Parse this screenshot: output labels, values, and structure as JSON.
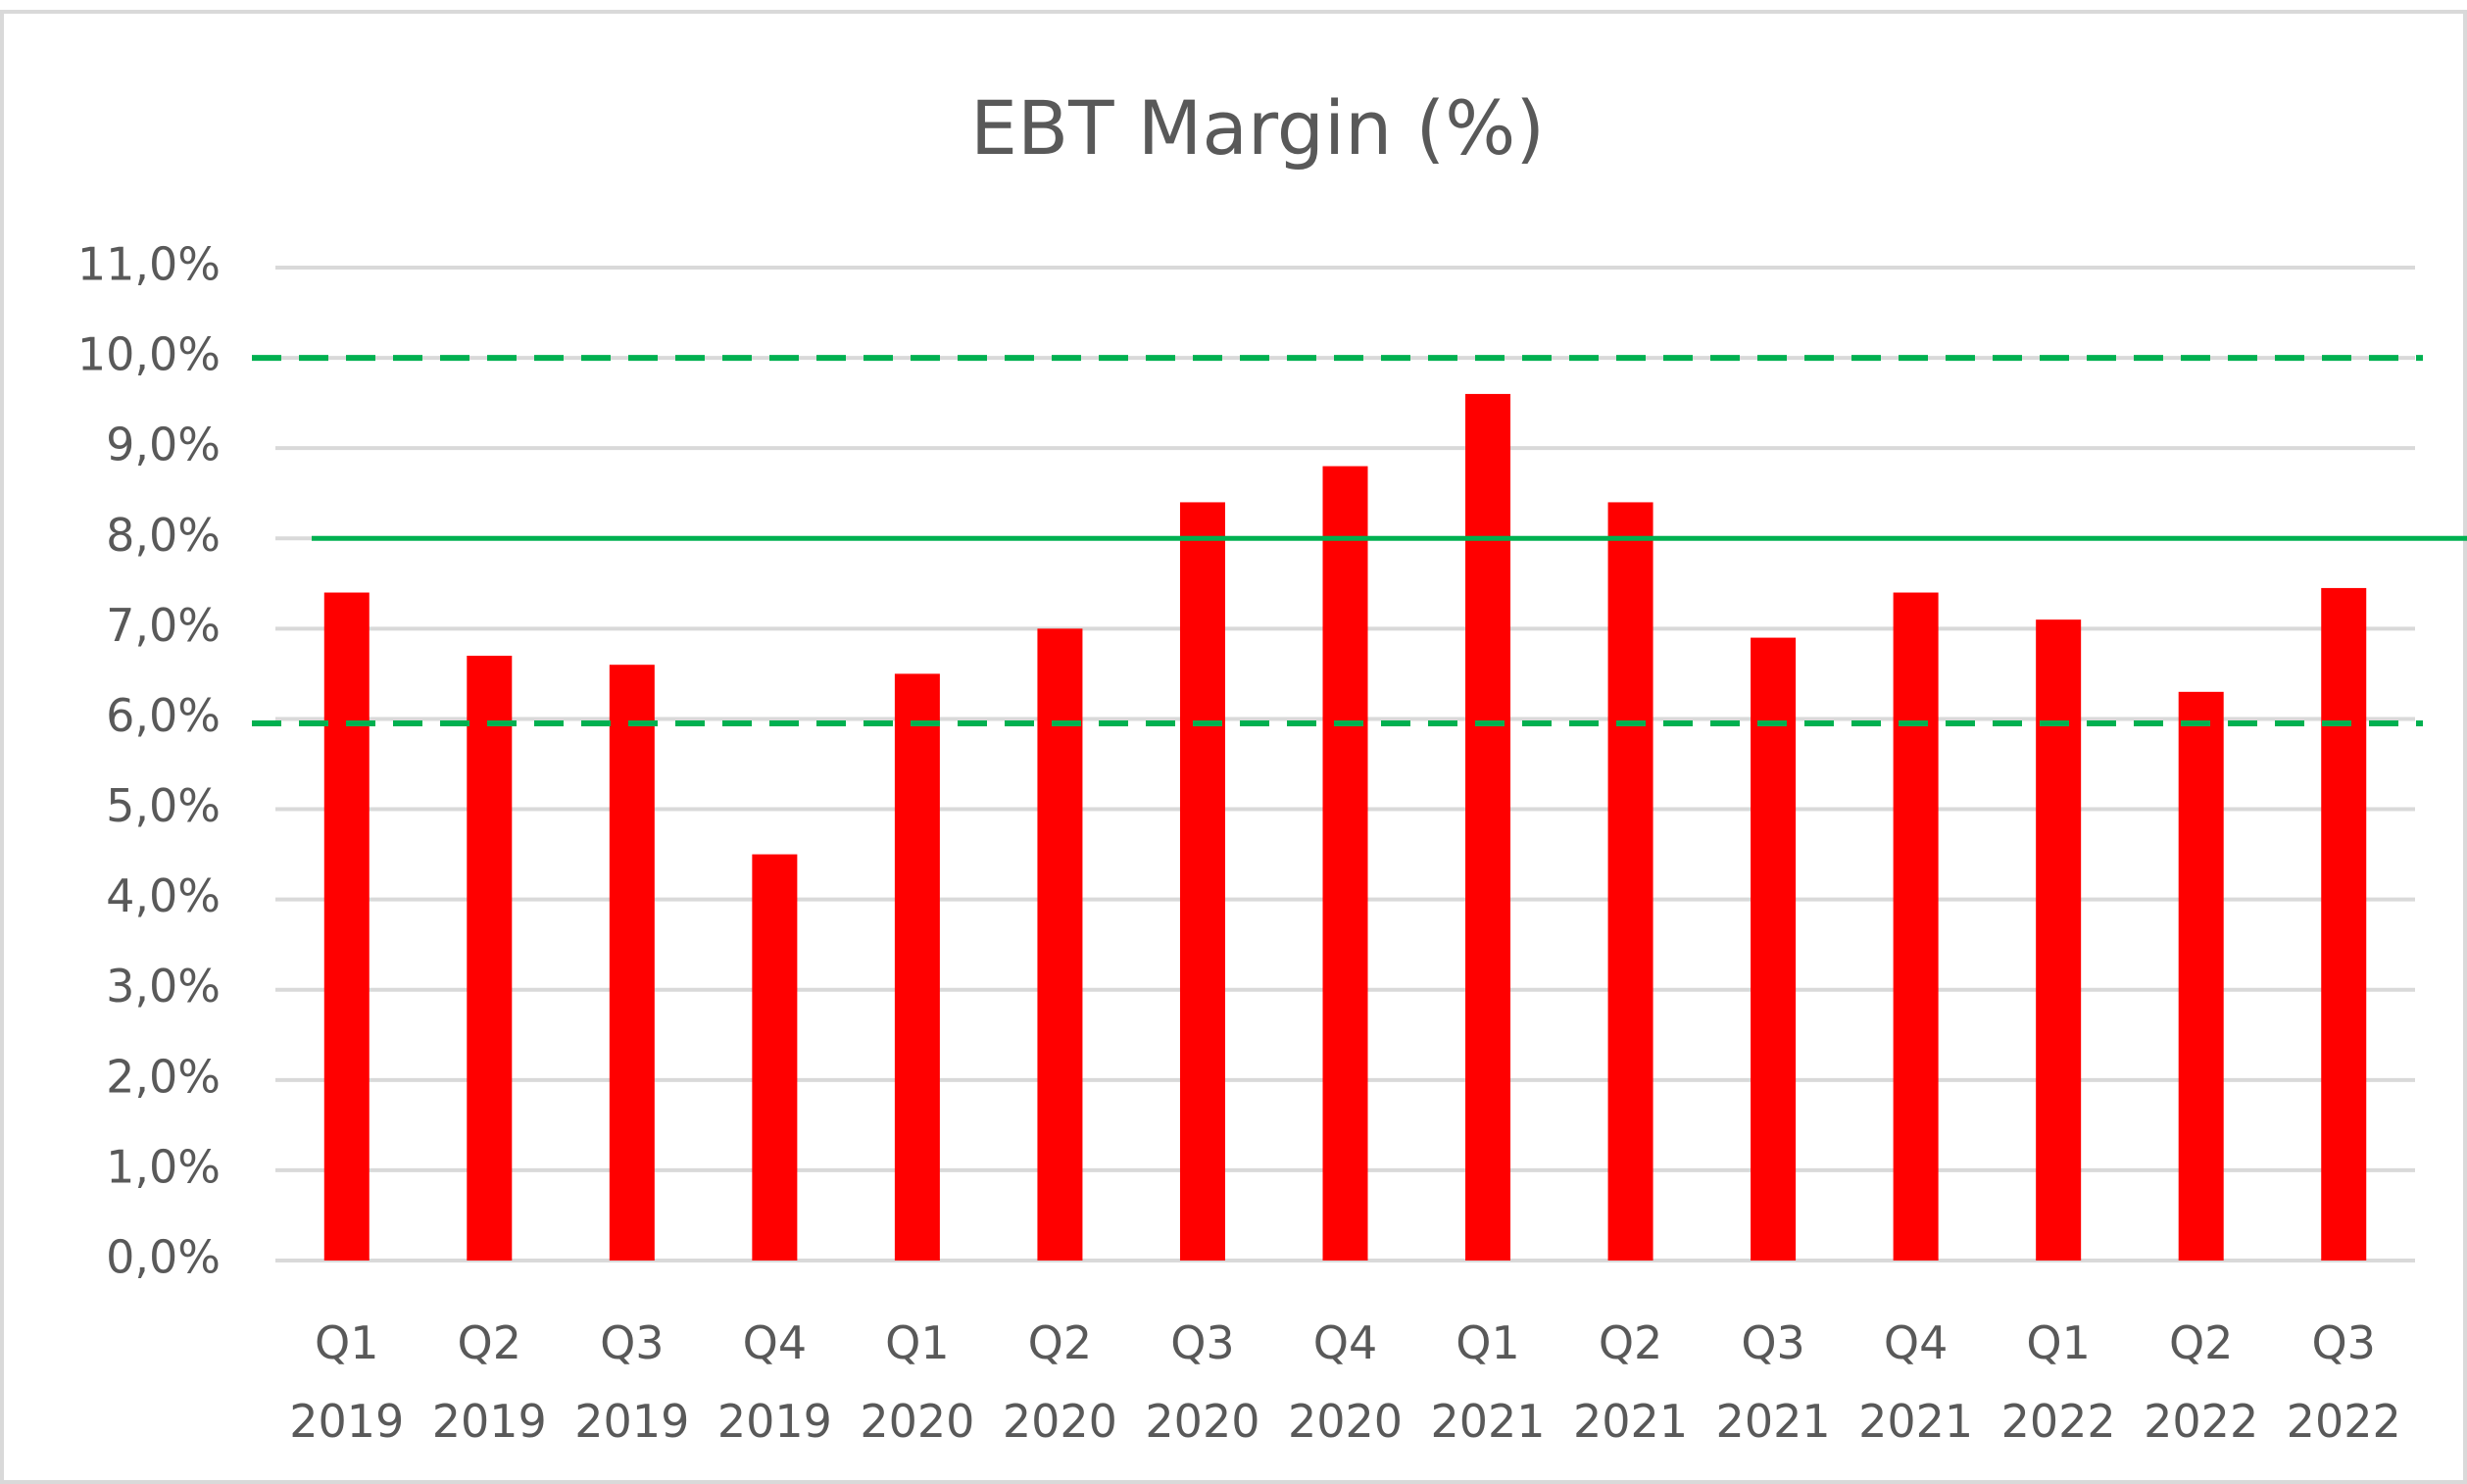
{
  "chart_data": {
    "type": "bar",
    "title": "EBT Margin (%)",
    "categories": [
      "Q1 2019",
      "Q2 2019",
      "Q3 2019",
      "Q4 2019",
      "Q1 2020",
      "Q2 2020",
      "Q3 2020",
      "Q4 2020",
      "Q1 2021",
      "Q2 2021",
      "Q3 2021",
      "Q4 2021",
      "Q1 2022",
      "Q2 2022",
      "Q3 2022"
    ],
    "values": [
      7.4,
      6.7,
      6.6,
      4.5,
      6.5,
      7.0,
      8.4,
      8.8,
      9.6,
      8.4,
      6.9,
      7.4,
      7.1,
      6.3,
      7.45
    ],
    "color": "#ff0000",
    "ylim": [
      0,
      11
    ],
    "yticks": [
      {
        "value": 0,
        "label": "0,0%"
      },
      {
        "value": 1,
        "label": "1,0%"
      },
      {
        "value": 2,
        "label": "2,0%"
      },
      {
        "value": 3,
        "label": "3,0%"
      },
      {
        "value": 4,
        "label": "4,0%"
      },
      {
        "value": 5,
        "label": "5,0%"
      },
      {
        "value": 6,
        "label": "6,0%"
      },
      {
        "value": 7,
        "label": "7,0%"
      },
      {
        "value": 8,
        "label": "8,0%"
      },
      {
        "value": 9,
        "label": "9,0%"
      },
      {
        "value": 10,
        "label": "10,0%"
      },
      {
        "value": 11,
        "label": "11,0%"
      }
    ],
    "grid": true,
    "reference_lines": [
      {
        "value": 10,
        "style": "dashed",
        "color": "#00b050"
      },
      {
        "value": 8,
        "style": "solid",
        "color": "#00b050"
      },
      {
        "value": 5.95,
        "style": "dashed",
        "color": "#00b050"
      }
    ]
  }
}
